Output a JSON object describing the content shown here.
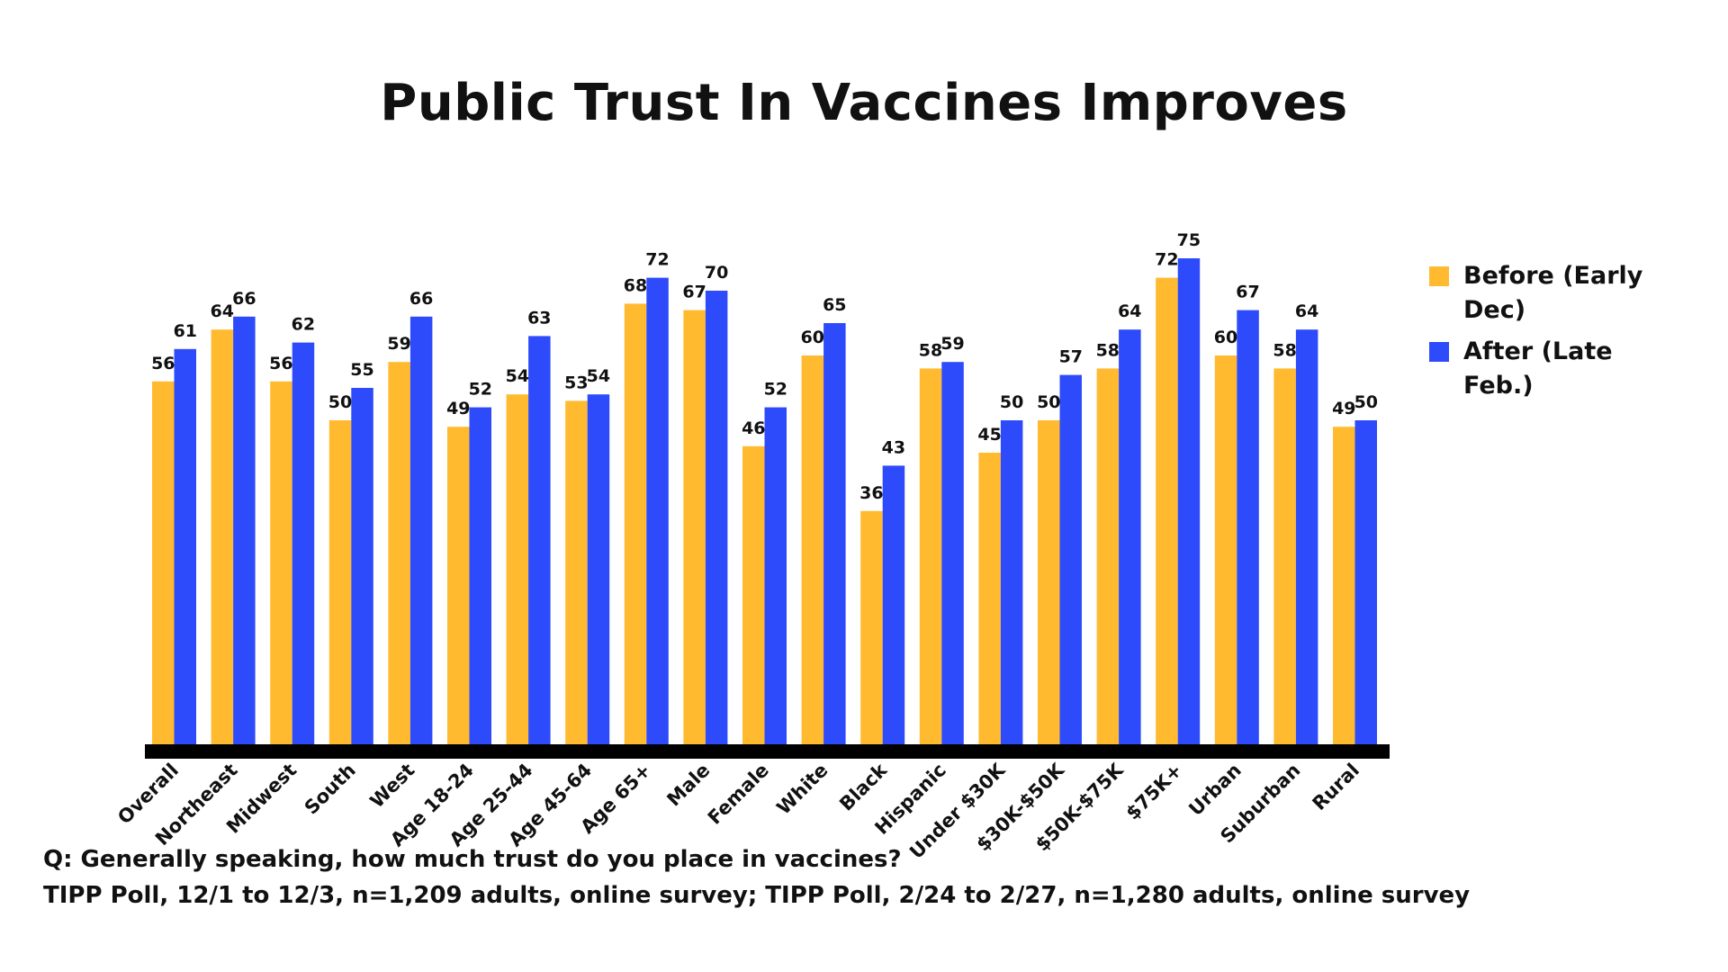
{
  "chart_data": {
    "type": "bar",
    "title": "Public Trust In Vaccines Improves",
    "categories": [
      "Overall",
      "Northeast",
      "Midwest",
      "South",
      "West",
      "Age 18-24",
      "Age 25-44",
      "Age 45-64",
      "Age 65+",
      "Male",
      "Female",
      "White",
      "Black",
      "Hispanic",
      "Under $30K",
      "$30K-$50K",
      "$50K-$75K",
      "$75K+",
      "Urban",
      "Suburban",
      "Rural"
    ],
    "series": [
      {
        "name": "Before (Early Dec)",
        "legend_lines": [
          "Before (Early",
          "Dec)"
        ],
        "color": "#FFBA30",
        "values": [
          56,
          64,
          56,
          50,
          59,
          49,
          54,
          53,
          68,
          67,
          46,
          60,
          36,
          58,
          45,
          50,
          58,
          72,
          60,
          58,
          49
        ]
      },
      {
        "name": "After (Late Feb.)",
        "legend_lines": [
          "After (Late",
          "Feb.)"
        ],
        "color": "#2D4BFA",
        "values": [
          61,
          66,
          62,
          55,
          66,
          52,
          63,
          54,
          72,
          70,
          52,
          65,
          43,
          59,
          50,
          57,
          64,
          75,
          67,
          64,
          50
        ]
      }
    ],
    "xlabel": "",
    "ylabel": "",
    "ylim": [
      0,
      75
    ],
    "grid": false,
    "legend_position": "right",
    "data_labels": true
  },
  "footnotes": {
    "question": "Q:  Generally speaking, how much trust do you place in vaccines?",
    "source": "TIPP Poll, 12/1 to 12/3, n=1,209 adults, online survey; TIPP Poll, 2/24 to 2/27, n=1,280 adults, online survey"
  }
}
